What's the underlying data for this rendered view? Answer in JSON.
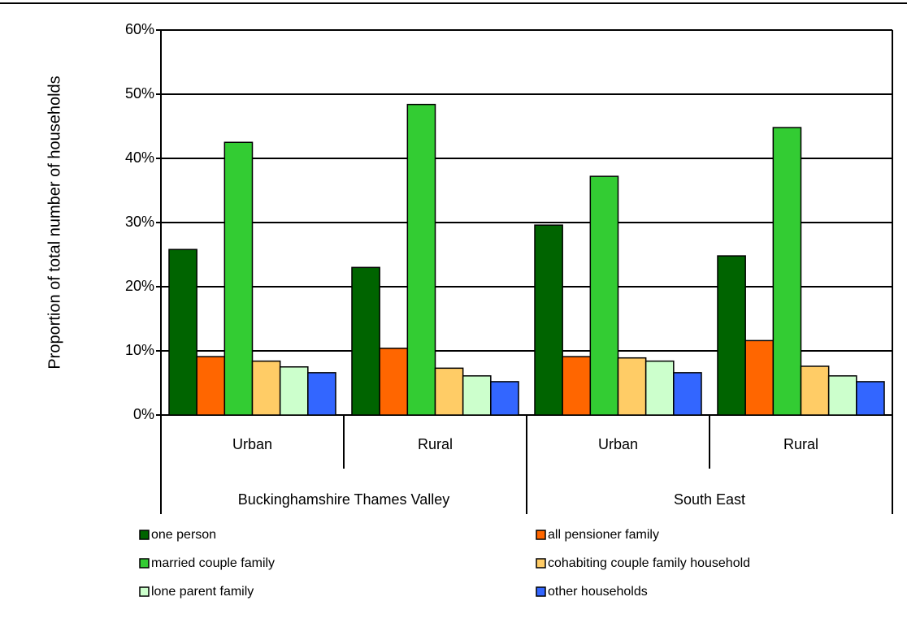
{
  "chart_data": {
    "type": "bar",
    "y_label": "Proportion of total number of households",
    "groups": [
      {
        "name": "Buckinghamshire Thames Valley",
        "categories": [
          "Urban",
          "Rural"
        ]
      },
      {
        "name": "South East",
        "categories": [
          "Urban",
          "Rural"
        ]
      }
    ],
    "series": [
      {
        "name": "one person",
        "color": "#006400",
        "values": [
          25.8,
          23.0,
          29.6,
          24.8
        ]
      },
      {
        "name": "all pensioner family",
        "color": "#ff6600",
        "values": [
          9.1,
          10.4,
          9.1,
          11.6
        ]
      },
      {
        "name": "married couple family",
        "color": "#33cc33",
        "values": [
          42.5,
          48.4,
          37.2,
          44.8
        ]
      },
      {
        "name": "cohabiting couple family household",
        "color": "#ffcc66",
        "values": [
          8.4,
          7.3,
          8.9,
          7.6
        ]
      },
      {
        "name": "lone parent family",
        "color": "#ccffcc",
        "values": [
          7.5,
          6.1,
          8.4,
          6.1
        ]
      },
      {
        "name": "other households",
        "color": "#3366ff",
        "values": [
          6.6,
          5.2,
          6.6,
          5.2
        ]
      }
    ],
    "ylim": [
      0,
      60
    ],
    "yticks": [
      {
        "value": 0,
        "label": "0%"
      },
      {
        "value": 10,
        "label": "10%"
      },
      {
        "value": 20,
        "label": "20%"
      },
      {
        "value": 30,
        "label": "30%"
      },
      {
        "value": 40,
        "label": "40%"
      },
      {
        "value": 50,
        "label": "50%"
      },
      {
        "value": 60,
        "label": "60%"
      }
    ],
    "grid": true
  }
}
